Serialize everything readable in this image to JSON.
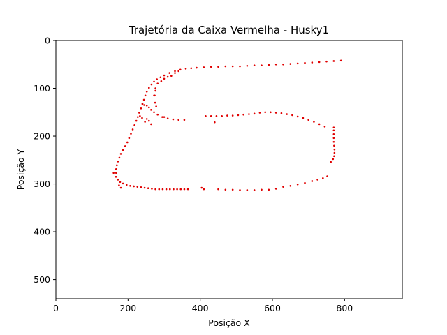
{
  "chart_data": {
    "type": "scatter",
    "title": "Trajetória da Caixa Vermelha - Husky1",
    "xlabel": "Posição X",
    "ylabel": "Posição Y",
    "xlim": [
      0,
      960
    ],
    "ylim": [
      540,
      0
    ],
    "y_inverted": true,
    "grid": false,
    "marker_color": "#e00000",
    "x_ticks": [
      0,
      200,
      400,
      600,
      800
    ],
    "y_ticks": [
      0,
      100,
      200,
      300,
      400,
      500
    ],
    "points": [
      [
        790,
        42
      ],
      [
        770,
        43
      ],
      [
        750,
        44
      ],
      [
        730,
        45
      ],
      [
        710,
        46
      ],
      [
        690,
        47
      ],
      [
        670,
        48
      ],
      [
        650,
        49
      ],
      [
        630,
        50
      ],
      [
        610,
        50
      ],
      [
        590,
        51
      ],
      [
        570,
        52
      ],
      [
        550,
        52
      ],
      [
        530,
        53
      ],
      [
        510,
        54
      ],
      [
        490,
        54
      ],
      [
        470,
        54
      ],
      [
        450,
        55
      ],
      [
        430,
        55
      ],
      [
        410,
        56
      ],
      [
        390,
        57
      ],
      [
        375,
        58
      ],
      [
        360,
        59
      ],
      [
        345,
        61
      ],
      [
        330,
        64
      ],
      [
        315,
        68
      ],
      [
        300,
        73
      ],
      [
        290,
        77
      ],
      [
        280,
        81
      ],
      [
        272,
        86
      ],
      [
        265,
        92
      ],
      [
        258,
        99
      ],
      [
        252,
        107
      ],
      [
        248,
        115
      ],
      [
        244,
        124
      ],
      [
        240,
        133
      ],
      [
        236,
        142
      ],
      [
        231,
        151
      ],
      [
        227,
        160
      ],
      [
        223,
        168
      ],
      [
        218,
        177
      ],
      [
        213,
        186
      ],
      [
        208,
        195
      ],
      [
        203,
        204
      ],
      [
        198,
        213
      ],
      [
        192,
        221
      ],
      [
        186,
        229
      ],
      [
        180,
        237
      ],
      [
        176,
        245
      ],
      [
        172,
        253
      ],
      [
        169,
        261
      ],
      [
        167,
        269
      ],
      [
        167,
        277
      ],
      [
        168,
        285
      ],
      [
        172,
        291
      ],
      [
        178,
        296
      ],
      [
        186,
        299
      ],
      [
        196,
        302
      ],
      [
        206,
        304
      ],
      [
        216,
        305
      ],
      [
        226,
        306
      ],
      [
        236,
        307
      ],
      [
        246,
        308
      ],
      [
        256,
        309
      ],
      [
        266,
        310
      ],
      [
        276,
        311
      ],
      [
        286,
        311
      ],
      [
        296,
        311
      ],
      [
        306,
        311
      ],
      [
        316,
        311
      ],
      [
        326,
        311
      ],
      [
        336,
        311
      ],
      [
        346,
        311
      ],
      [
        356,
        311
      ],
      [
        366,
        311
      ],
      [
        404,
        308
      ],
      [
        410,
        311
      ],
      [
        450,
        311
      ],
      [
        470,
        312
      ],
      [
        490,
        312
      ],
      [
        510,
        313
      ],
      [
        530,
        313
      ],
      [
        550,
        313
      ],
      [
        570,
        312
      ],
      [
        590,
        312
      ],
      [
        610,
        310
      ],
      [
        630,
        306
      ],
      [
        650,
        304
      ],
      [
        670,
        301
      ],
      [
        690,
        298
      ],
      [
        710,
        294
      ],
      [
        725,
        291
      ],
      [
        740,
        288
      ],
      [
        752,
        284
      ],
      [
        762,
        254
      ],
      [
        768,
        248
      ],
      [
        771,
        242
      ],
      [
        772,
        235
      ],
      [
        772,
        228
      ],
      [
        771,
        220
      ],
      [
        770,
        212
      ],
      [
        770,
        204
      ],
      [
        770,
        196
      ],
      [
        770,
        188
      ],
      [
        770,
        182
      ],
      [
        745,
        180
      ],
      [
        730,
        175
      ],
      [
        715,
        170
      ],
      [
        700,
        166
      ],
      [
        685,
        162
      ],
      [
        670,
        159
      ],
      [
        655,
        156
      ],
      [
        640,
        154
      ],
      [
        625,
        152
      ],
      [
        610,
        151
      ],
      [
        595,
        150
      ],
      [
        580,
        150
      ],
      [
        565,
        151
      ],
      [
        550,
        153
      ],
      [
        535,
        154
      ],
      [
        520,
        155
      ],
      [
        505,
        156
      ],
      [
        490,
        157
      ],
      [
        475,
        157
      ],
      [
        460,
        158
      ],
      [
        445,
        158
      ],
      [
        430,
        158
      ],
      [
        415,
        158
      ],
      [
        300,
        160
      ],
      [
        440,
        171
      ],
      [
        356,
        166
      ],
      [
        340,
        166
      ],
      [
        325,
        165
      ],
      [
        310,
        163
      ],
      [
        295,
        160
      ],
      [
        282,
        155
      ],
      [
        272,
        150
      ],
      [
        264,
        145
      ],
      [
        258,
        140
      ],
      [
        252,
        136
      ],
      [
        245,
        135
      ],
      [
        240,
        132
      ],
      [
        252,
        164
      ],
      [
        258,
        168
      ],
      [
        264,
        175
      ],
      [
        272,
        115
      ],
      [
        276,
        100
      ],
      [
        282,
        90
      ],
      [
        292,
        85
      ],
      [
        300,
        80
      ],
      [
        310,
        76
      ],
      [
        320,
        74
      ],
      [
        330,
        68
      ],
      [
        340,
        64
      ],
      [
        276,
        105
      ],
      [
        274,
        115
      ],
      [
        275,
        130
      ],
      [
        278,
        138
      ],
      [
        160,
        277
      ],
      [
        165,
        285
      ],
      [
        175,
        303
      ],
      [
        180,
        308
      ],
      [
        233,
        158
      ],
      [
        239,
        162
      ],
      [
        247,
        170
      ]
    ]
  }
}
